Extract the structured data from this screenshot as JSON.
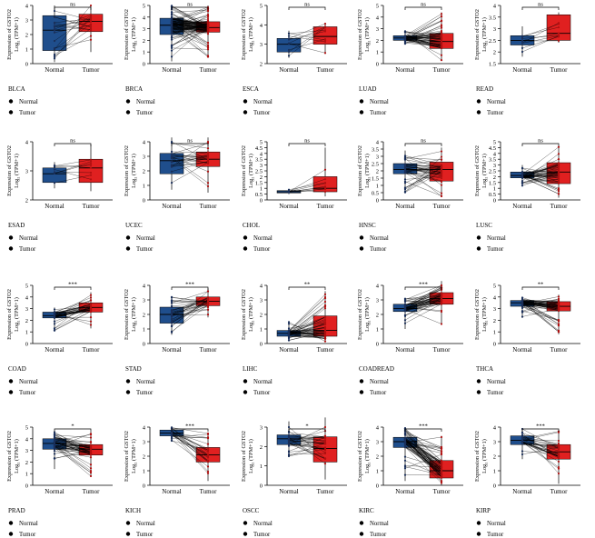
{
  "legend": {
    "normal_label": "Normal",
    "tumor_label": "Tumor"
  },
  "colors": {
    "normal": "#1f4e8c",
    "tumor": "#e02020",
    "normal_point": "#1a2f5a",
    "tumor_point": "#b01010",
    "line": "#000000"
  },
  "ylabel_line1": "Expression of GSTO2",
  "ylabel_line2": "Log₂ (TPM+1)",
  "chart_data": [
    {
      "type": "box",
      "title": "BLCA",
      "sig": "ns",
      "categories": [
        "Normal",
        "Tumor"
      ],
      "ylim": [
        0,
        4
      ],
      "yticks": [
        0,
        1,
        2,
        3,
        4
      ],
      "n": 19,
      "series": [
        {
          "name": "Normal",
          "q1": 0.9,
          "median": 2.3,
          "q3": 3.3,
          "whisker_low": 0.1,
          "whisker_high": 4.0
        },
        {
          "name": "Tumor",
          "q1": 2.2,
          "median": 2.9,
          "q3": 3.4,
          "whisker_low": 0.8,
          "whisker_high": 4.0
        }
      ]
    },
    {
      "type": "box",
      "title": "BRCA",
      "sig": "ns",
      "categories": [
        "Normal",
        "Tumor"
      ],
      "ylim": [
        0,
        5
      ],
      "yticks": [
        0,
        1,
        2,
        3,
        4,
        5
      ],
      "n": 110,
      "series": [
        {
          "name": "Normal",
          "q1": 2.5,
          "median": 3.3,
          "q3": 3.9,
          "whisker_low": 0.2,
          "whisker_high": 5.0
        },
        {
          "name": "Tumor",
          "q1": 2.7,
          "median": 3.1,
          "q3": 3.6,
          "whisker_low": 0.5,
          "whisker_high": 5.0
        }
      ]
    },
    {
      "type": "box",
      "title": "ESCA",
      "sig": "ns",
      "categories": [
        "Normal",
        "Tumor"
      ],
      "ylim": [
        2,
        5
      ],
      "yticks": [
        2,
        3,
        4,
        5
      ],
      "n": 10,
      "series": [
        {
          "name": "Normal",
          "q1": 2.6,
          "median": 3.0,
          "q3": 3.3,
          "whisker_low": 2.3,
          "whisker_high": 3.7
        },
        {
          "name": "Tumor",
          "q1": 3.0,
          "median": 3.4,
          "q3": 3.9,
          "whisker_low": 2.5,
          "whisker_high": 4.1
        }
      ]
    },
    {
      "type": "box",
      "title": "LUAD",
      "sig": "ns",
      "categories": [
        "Normal",
        "Tumor"
      ],
      "ylim": [
        0,
        5
      ],
      "yticks": [
        0,
        1,
        2,
        3,
        4,
        5
      ],
      "n": 57,
      "series": [
        {
          "name": "Normal",
          "q1": 2.0,
          "median": 2.2,
          "q3": 2.4,
          "whisker_low": 1.7,
          "whisker_high": 2.8
        },
        {
          "name": "Tumor",
          "q1": 1.3,
          "median": 1.9,
          "q3": 2.6,
          "whisker_low": 0.3,
          "whisker_high": 4.4
        }
      ]
    },
    {
      "type": "box",
      "title": "READ",
      "sig": "ns",
      "categories": [
        "Normal",
        "Tumor"
      ],
      "ylim": [
        1.5,
        4
      ],
      "yticks": [
        1.5,
        2,
        2.5,
        3,
        3.5,
        4
      ],
      "n": 9,
      "series": [
        {
          "name": "Normal",
          "q1": 2.3,
          "median": 2.5,
          "q3": 2.7,
          "whisker_low": 1.8,
          "whisker_high": 3.1
        },
        {
          "name": "Tumor",
          "q1": 2.5,
          "median": 2.8,
          "q3": 3.6,
          "whisker_low": 2.4,
          "whisker_high": 3.7
        }
      ]
    },
    {
      "type": "box",
      "title": "ESAD",
      "sig": "ns",
      "categories": [
        "Normal",
        "Tumor"
      ],
      "ylim": [
        2,
        4
      ],
      "yticks": [
        2,
        3,
        4
      ],
      "n": 8,
      "series": [
        {
          "name": "Normal",
          "q1": 2.6,
          "median": 2.9,
          "q3": 3.1,
          "whisker_low": 2.4,
          "whisker_high": 3.3
        },
        {
          "name": "Tumor",
          "q1": 2.6,
          "median": 3.1,
          "q3": 3.4,
          "whisker_low": 2.3,
          "whisker_high": 3.9
        }
      ]
    },
    {
      "type": "box",
      "title": "UCEC",
      "sig": "ns",
      "categories": [
        "Normal",
        "Tumor"
      ],
      "ylim": [
        0,
        4
      ],
      "yticks": [
        0,
        1,
        2,
        3,
        4
      ],
      "n": 23,
      "series": [
        {
          "name": "Normal",
          "q1": 1.8,
          "median": 2.7,
          "q3": 3.2,
          "whisker_low": 0.7,
          "whisker_high": 4.3
        },
        {
          "name": "Tumor",
          "q1": 2.3,
          "median": 2.8,
          "q3": 3.3,
          "whisker_low": 0.5,
          "whisker_high": 4.3
        }
      ]
    },
    {
      "type": "box",
      "title": "CHOL",
      "sig": "ns",
      "categories": [
        "Normal",
        "Tumor"
      ],
      "ylim": [
        0,
        5
      ],
      "yticks": [
        0,
        0.5,
        1,
        1.5,
        2,
        2.5,
        3,
        3.5,
        4,
        4.5,
        5
      ],
      "n": 9,
      "series": [
        {
          "name": "Normal",
          "q1": 0.6,
          "median": 0.7,
          "q3": 0.8,
          "whisker_low": 0.5,
          "whisker_high": 0.9
        },
        {
          "name": "Tumor",
          "q1": 0.7,
          "median": 1.0,
          "q3": 2.0,
          "whisker_low": 0.3,
          "whisker_high": 4.5
        }
      ]
    },
    {
      "type": "box",
      "title": "HNSC",
      "sig": "ns",
      "categories": [
        "Normal",
        "Tumor"
      ],
      "ylim": [
        0,
        4
      ],
      "yticks": [
        0,
        0.5,
        1,
        1.5,
        2,
        2.5,
        3,
        3.5,
        4
      ],
      "n": 43,
      "series": [
        {
          "name": "Normal",
          "q1": 1.8,
          "median": 2.1,
          "q3": 2.5,
          "whisker_low": 0.5,
          "whisker_high": 3.4
        },
        {
          "name": "Tumor",
          "q1": 1.3,
          "median": 2.1,
          "q3": 2.6,
          "whisker_low": 0.2,
          "whisker_high": 3.6
        }
      ]
    },
    {
      "type": "box",
      "title": "LUSC",
      "sig": "ns",
      "categories": [
        "Normal",
        "Tumor"
      ],
      "ylim": [
        0,
        5
      ],
      "yticks": [
        0,
        0.5,
        1,
        1.5,
        2,
        2.5,
        3,
        3.5,
        4,
        4.5,
        5
      ],
      "n": 49,
      "series": [
        {
          "name": "Normal",
          "q1": 1.9,
          "median": 2.1,
          "q3": 2.4,
          "whisker_low": 1.2,
          "whisker_high": 3.0
        },
        {
          "name": "Tumor",
          "q1": 1.4,
          "median": 2.4,
          "q3": 3.2,
          "whisker_low": 0.2,
          "whisker_high": 4.6
        }
      ]
    },
    {
      "type": "box",
      "title": "COAD",
      "sig": "***",
      "categories": [
        "Normal",
        "Tumor"
      ],
      "ylim": [
        0,
        5
      ],
      "yticks": [
        0,
        1,
        2,
        3,
        4,
        5
      ],
      "n": 41,
      "series": [
        {
          "name": "Normal",
          "q1": 2.2,
          "median": 2.4,
          "q3": 2.7,
          "whisker_low": 1.1,
          "whisker_high": 3.1
        },
        {
          "name": "Tumor",
          "q1": 2.7,
          "median": 3.1,
          "q3": 3.5,
          "whisker_low": 1.3,
          "whisker_high": 4.4
        }
      ]
    },
    {
      "type": "box",
      "title": "STAD",
      "sig": "***",
      "categories": [
        "Normal",
        "Tumor"
      ],
      "ylim": [
        0,
        4
      ],
      "yticks": [
        0,
        1,
        2,
        3,
        4
      ],
      "n": 32,
      "series": [
        {
          "name": "Normal",
          "q1": 1.4,
          "median": 2.0,
          "q3": 2.5,
          "whisker_low": 0.6,
          "whisker_high": 3.2
        },
        {
          "name": "Tumor",
          "q1": 2.6,
          "median": 2.9,
          "q3": 3.2,
          "whisker_low": 1.8,
          "whisker_high": 3.8
        }
      ]
    },
    {
      "type": "box",
      "title": "LIHC",
      "sig": "**",
      "categories": [
        "Normal",
        "Tumor"
      ],
      "ylim": [
        0,
        4
      ],
      "yticks": [
        0,
        1,
        2,
        3,
        4
      ],
      "n": 50,
      "series": [
        {
          "name": "Normal",
          "q1": 0.5,
          "median": 0.7,
          "q3": 0.9,
          "whisker_low": 0.2,
          "whisker_high": 1.5
        },
        {
          "name": "Tumor",
          "q1": 0.5,
          "median": 0.9,
          "q3": 1.9,
          "whisker_low": 0.1,
          "whisker_high": 3.6
        }
      ]
    },
    {
      "type": "box",
      "title": "COADREAD",
      "sig": "***",
      "categories": [
        "Normal",
        "Tumor"
      ],
      "ylim": [
        0,
        4
      ],
      "yticks": [
        0,
        1,
        2,
        3,
        4
      ],
      "n": 50,
      "series": [
        {
          "name": "Normal",
          "q1": 2.2,
          "median": 2.4,
          "q3": 2.7,
          "whisker_low": 1.0,
          "whisker_high": 3.1
        },
        {
          "name": "Tumor",
          "q1": 2.7,
          "median": 3.1,
          "q3": 3.5,
          "whisker_low": 1.3,
          "whisker_high": 4.3
        }
      ]
    },
    {
      "type": "box",
      "title": "THCA",
      "sig": "**",
      "categories": [
        "Normal",
        "Tumor"
      ],
      "ylim": [
        0,
        5
      ],
      "yticks": [
        0,
        1,
        2,
        3,
        4,
        5
      ],
      "n": 59,
      "series": [
        {
          "name": "Normal",
          "q1": 3.2,
          "median": 3.5,
          "q3": 3.7,
          "whisker_low": 2.2,
          "whisker_high": 4.0
        },
        {
          "name": "Tumor",
          "q1": 2.8,
          "median": 3.2,
          "q3": 3.6,
          "whisker_low": 0.8,
          "whisker_high": 4.2
        }
      ]
    },
    {
      "type": "box",
      "title": "PRAD",
      "sig": "*",
      "categories": [
        "Normal",
        "Tumor"
      ],
      "ylim": [
        0,
        5
      ],
      "yticks": [
        0,
        1,
        2,
        3,
        4,
        5
      ],
      "n": 52,
      "series": [
        {
          "name": "Normal",
          "q1": 3.1,
          "median": 3.6,
          "q3": 4.0,
          "whisker_low": 1.4,
          "whisker_high": 4.6
        },
        {
          "name": "Tumor",
          "q1": 2.6,
          "median": 3.1,
          "q3": 3.5,
          "whisker_low": 0.7,
          "whisker_high": 4.6
        }
      ]
    },
    {
      "type": "box",
      "title": "KICH",
      "sig": "***",
      "categories": [
        "Normal",
        "Tumor"
      ],
      "ylim": [
        0,
        4
      ],
      "yticks": [
        0,
        1,
        2,
        3,
        4
      ],
      "n": 25,
      "series": [
        {
          "name": "Normal",
          "q1": 3.4,
          "median": 3.6,
          "q3": 3.8,
          "whisker_low": 3.0,
          "whisker_high": 4.0
        },
        {
          "name": "Tumor",
          "q1": 1.6,
          "median": 2.1,
          "q3": 2.6,
          "whisker_low": 0.3,
          "whisker_high": 3.6
        }
      ]
    },
    {
      "type": "box",
      "title": "OSCC",
      "sig": "*",
      "categories": [
        "Normal",
        "Tumor"
      ],
      "ylim": [
        0,
        3
      ],
      "yticks": [
        0,
        1,
        2,
        3
      ],
      "n": 32,
      "series": [
        {
          "name": "Normal",
          "q1": 2.1,
          "median": 2.4,
          "q3": 2.6,
          "whisker_low": 1.5,
          "whisker_high": 3.3
        },
        {
          "name": "Tumor",
          "q1": 1.2,
          "median": 1.9,
          "q3": 2.5,
          "whisker_low": 0.3,
          "whisker_high": 3.5
        }
      ]
    },
    {
      "type": "box",
      "title": "KIRC",
      "sig": "***",
      "categories": [
        "Normal",
        "Tumor"
      ],
      "ylim": [
        0,
        4
      ],
      "yticks": [
        0,
        1,
        2,
        3,
        4
      ],
      "n": 72,
      "series": [
        {
          "name": "Normal",
          "q1": 2.6,
          "median": 3.0,
          "q3": 3.3,
          "whisker_low": 0.3,
          "whisker_high": 4.0
        },
        {
          "name": "Tumor",
          "q1": 0.5,
          "median": 1.0,
          "q3": 1.7,
          "whisker_low": 0.0,
          "whisker_high": 3.4
        }
      ]
    },
    {
      "type": "box",
      "title": "KIRP",
      "sig": "***",
      "categories": [
        "Normal",
        "Tumor"
      ],
      "ylim": [
        0,
        4
      ],
      "yticks": [
        0,
        1,
        2,
        3,
        4
      ],
      "n": 32,
      "series": [
        {
          "name": "Normal",
          "q1": 2.8,
          "median": 3.1,
          "q3": 3.4,
          "whisker_low": 1.8,
          "whisker_high": 3.9
        },
        {
          "name": "Tumor",
          "q1": 1.8,
          "median": 2.3,
          "q3": 2.8,
          "whisker_low": 0.1,
          "whisker_high": 3.8
        }
      ]
    }
  ]
}
